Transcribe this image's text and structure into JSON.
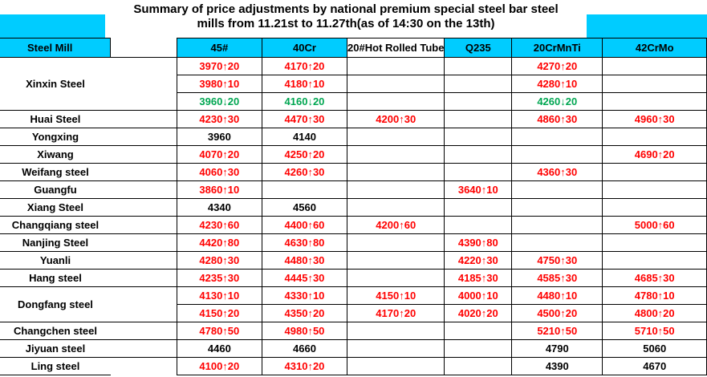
{
  "title": {
    "line1": "Summary of price adjustments by national premium special steel bar steel",
    "line2": "mills from 11.21st to 11.27th(as of 14:30 on the 13th)"
  },
  "header": {
    "mill": "Steel Mill",
    "columns": [
      "45#",
      "40Cr",
      "20#Hot Rolled Tube",
      "Q235",
      "20CrMnTi",
      "42CrMo"
    ]
  },
  "colors": {
    "header_bg": "#00ccff",
    "up": "#ff0000",
    "down": "#00a651",
    "flat": "#000000"
  },
  "mills": [
    {
      "name": "Xinxin Steel",
      "rows": [
        [
          "3970↑20",
          "4170↑20",
          "",
          "",
          "4270↑20",
          ""
        ],
        [
          "3980↑10",
          "4180↑10",
          "",
          "",
          "4280↑10",
          ""
        ],
        [
          "3960↓20",
          "4160↓20",
          "",
          "",
          "4260↓20",
          ""
        ]
      ]
    },
    {
      "name": "Huai Steel",
      "rows": [
        [
          "4230↑30",
          "4470↑30",
          "4200↑30",
          "",
          "4860↑30",
          "4960↑30"
        ]
      ]
    },
    {
      "name": "Yongxing",
      "rows": [
        [
          "3960",
          "4140",
          "",
          "",
          "",
          ""
        ]
      ]
    },
    {
      "name": "Xiwang",
      "rows": [
        [
          "4070↑20",
          "4250↑20",
          "",
          "",
          "",
          "4690↑20"
        ]
      ]
    },
    {
      "name": "Weifang steel",
      "rows": [
        [
          "4060↑30",
          "4260↑30",
          "",
          "",
          "4360↑30",
          ""
        ]
      ]
    },
    {
      "name": "Guangfu",
      "rows": [
        [
          "3860↑10",
          "",
          "",
          "3640↑10",
          "",
          ""
        ]
      ]
    },
    {
      "name": "Xiang Steel",
      "rows": [
        [
          "4340",
          "4560",
          "",
          "",
          "",
          ""
        ]
      ]
    },
    {
      "name": "Changqiang steel",
      "rows": [
        [
          "4230↑60",
          "4400↑60",
          "4200↑60",
          "",
          "",
          "5000↑60"
        ]
      ]
    },
    {
      "name": "Nanjing Steel",
      "rows": [
        [
          "4420↑80",
          "4630↑80",
          "",
          "4390↑80",
          "",
          ""
        ]
      ]
    },
    {
      "name": "Yuanli",
      "rows": [
        [
          "4280↑30",
          "4480↑30",
          "",
          "4220↑30",
          "4750↑30",
          ""
        ]
      ]
    },
    {
      "name": "Hang steel",
      "rows": [
        [
          "4235↑30",
          "4445↑30",
          "",
          "4185↑30",
          "4585↑30",
          "4685↑30"
        ]
      ]
    },
    {
      "name": "Dongfang steel",
      "rows": [
        [
          "4130↑10",
          "4330↑10",
          "4150↑10",
          "4000↑10",
          "4480↑10",
          "4780↑10"
        ],
        [
          "4150↑20",
          "4350↑20",
          "4170↑20",
          "4020↑20",
          "4500↑20",
          "4800↑20"
        ]
      ]
    },
    {
      "name": "Changchen steel",
      "rows": [
        [
          "4780↑50",
          "4980↑50",
          "",
          "",
          "5210↑50",
          "5710↑50"
        ]
      ]
    },
    {
      "name": "Jiyuan steel",
      "rows": [
        [
          "4460",
          "4660",
          "",
          "",
          "4790",
          "5060"
        ]
      ]
    },
    {
      "name": "Ling steel",
      "rows": [
        [
          "4100↑20",
          "4310↑20",
          "",
          "",
          "4390",
          "4670"
        ]
      ]
    }
  ]
}
